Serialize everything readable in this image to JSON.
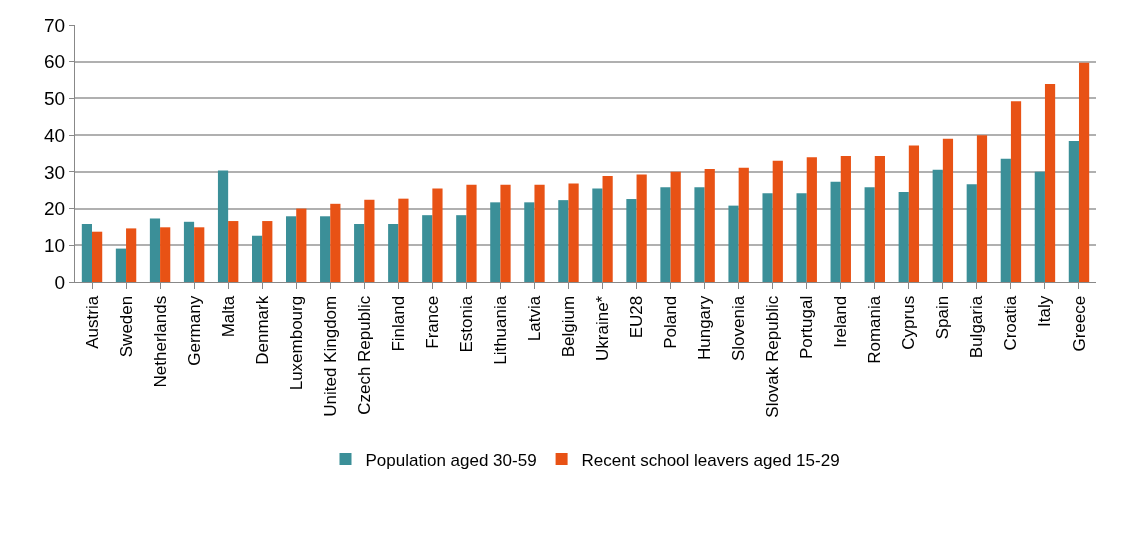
{
  "chart_data": {
    "type": "bar",
    "categories": [
      "Austria",
      "Sweden",
      "Netherlands",
      "Germany",
      "Malta",
      "Denmark",
      "Luxembourg",
      "United Kingdom",
      "Czech Republic",
      "Finland",
      "France",
      "Estonia",
      "Lithuania",
      "Latvia",
      "Belgium",
      "Ukraine*",
      "EU28",
      "Poland",
      "Hungary",
      "Slovenia",
      "Slovak Republic",
      "Portugal",
      "Ireland",
      "Romania",
      "Cyprus",
      "Spain",
      "Bulgaria",
      "Croatia",
      "Italy",
      "Greece"
    ],
    "series": [
      {
        "name": "Population aged 30-59",
        "color": "#3b8f98",
        "values": [
          15.8,
          9.1,
          17.3,
          16.4,
          30.4,
          12.6,
          17.9,
          17.9,
          15.8,
          15.8,
          18.2,
          18.2,
          21.7,
          21.7,
          22.3,
          25.5,
          22.6,
          25.8,
          25.8,
          20.8,
          24.2,
          24.2,
          27.3,
          25.8,
          24.5,
          30.6,
          26.6,
          33.6,
          30.0,
          38.4
        ]
      },
      {
        "name": "Recent school leavers aged 15-29",
        "color": "#e85215",
        "values": [
          13.7,
          14.6,
          14.9,
          14.9,
          16.6,
          16.6,
          20.0,
          21.3,
          22.4,
          22.7,
          25.5,
          26.5,
          26.5,
          26.5,
          26.8,
          28.9,
          29.3,
          30.0,
          30.8,
          31.1,
          33.0,
          34.0,
          34.3,
          34.3,
          37.2,
          39.0,
          40.0,
          49.2,
          53.9,
          59.7
        ]
      }
    ],
    "ylim": [
      0,
      70
    ],
    "yticks": [
      0,
      10,
      20,
      30,
      40,
      50,
      60,
      70
    ],
    "grid": "y",
    "legend": "bottom"
  }
}
